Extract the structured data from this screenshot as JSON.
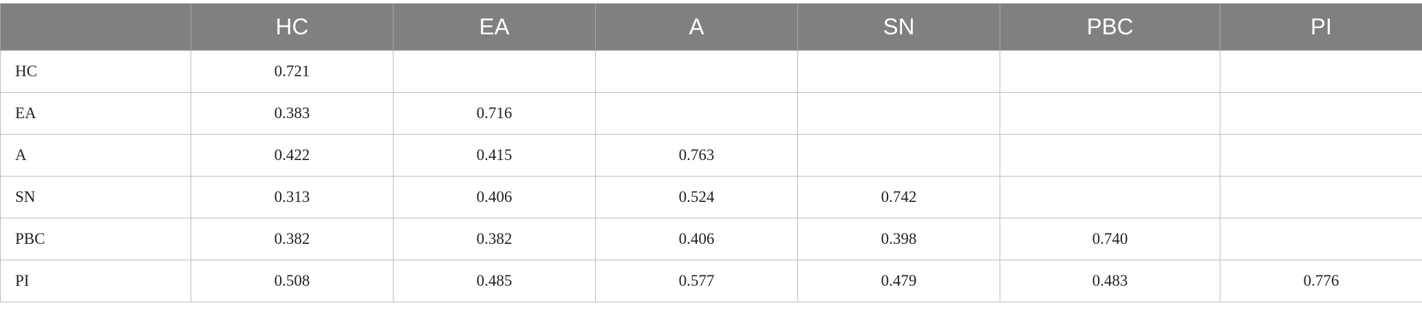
{
  "table": {
    "columns": [
      null,
      "HC",
      "EA",
      "A",
      "SN",
      "PBC",
      "PI"
    ],
    "rows": [
      [
        "HC",
        "0.721",
        null,
        null,
        null,
        null,
        null
      ],
      [
        "EA",
        "0.383",
        "0.716",
        null,
        null,
        null,
        null
      ],
      [
        "A",
        "0.422",
        "0.415",
        "0.763",
        null,
        null,
        null
      ],
      [
        "SN",
        "0.313",
        "0.406",
        "0.524",
        "0.742",
        null,
        null
      ],
      [
        "PBC",
        "0.382",
        "0.382",
        "0.406",
        "0.398",
        "0.740",
        null
      ],
      [
        "PI",
        "0.508",
        "0.485",
        "0.577",
        "0.479",
        "0.483",
        "0.776"
      ]
    ]
  }
}
